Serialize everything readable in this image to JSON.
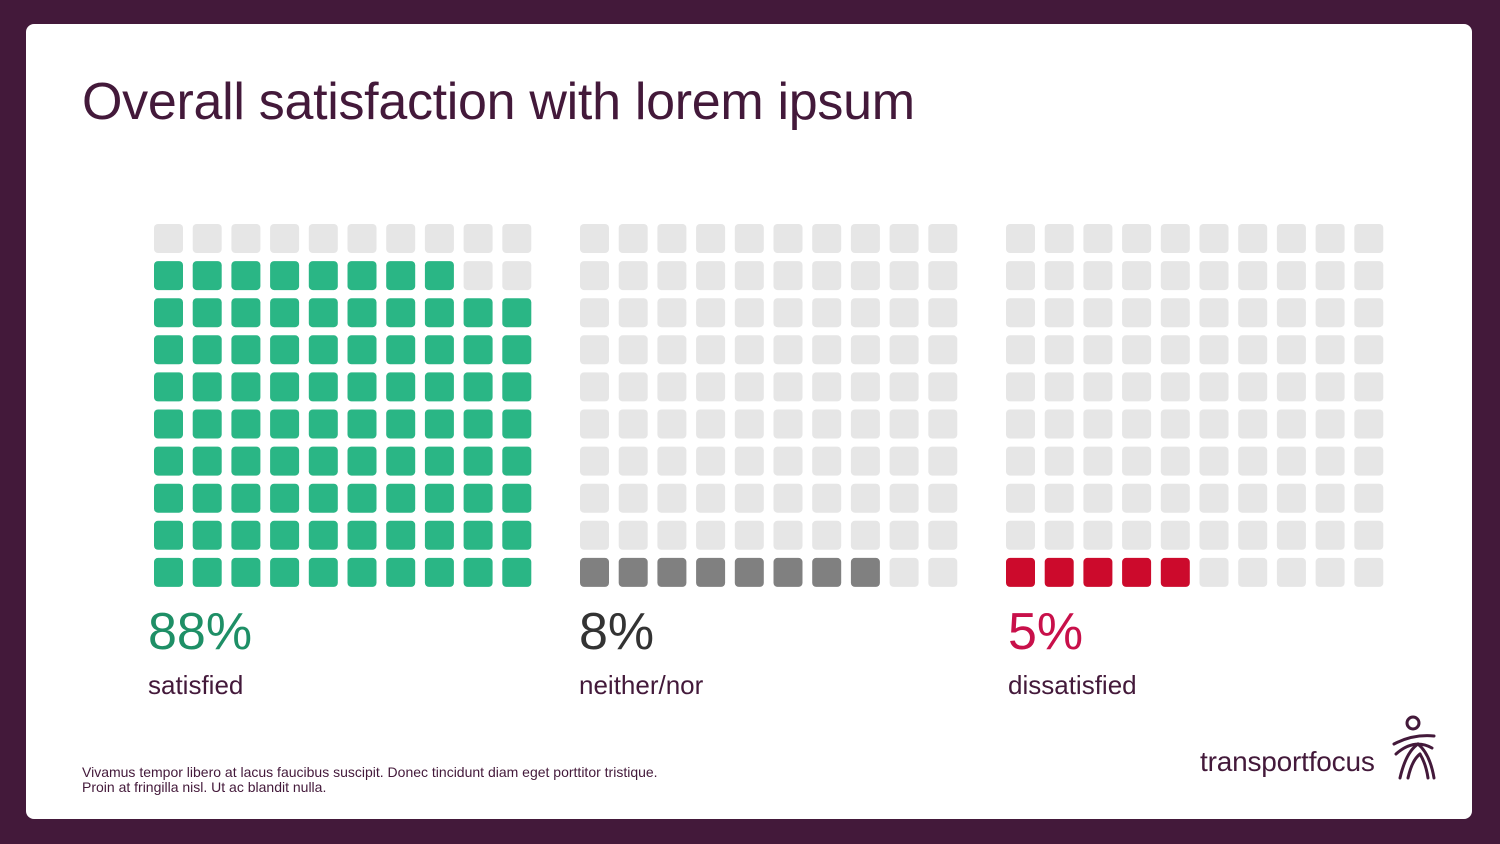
{
  "title": "Overall satisfaction with lorem ipsum",
  "chart_data": {
    "type": "waffle",
    "grid": {
      "rows": 10,
      "cols": 10
    },
    "empty_color": "#e6e6e6",
    "series": [
      {
        "name": "satisfied",
        "label": "88%",
        "value": 88,
        "color": "#2ab685",
        "text_color": "#1e8f66"
      },
      {
        "name": "neither/nor",
        "label": "8%",
        "value": 8,
        "color": "#808080",
        "text_color": "#333333"
      },
      {
        "name": "dissatisfied",
        "label": "5%",
        "value": 5,
        "color": "#cc0a2c",
        "text_color": "#c8104a"
      }
    ]
  },
  "footnote": {
    "line1": "Vivamus tempor libero at lacus faucibus suscipit. Donec tincidunt diam eget porttitor tristique.",
    "line2": "Proin at fringilla nisl. Ut ac blandit nulla."
  },
  "logo": {
    "text": "transportfocus",
    "icon": "transportfocus-figure-icon"
  },
  "colors": {
    "brand": "#43193a",
    "background": "#ffffff"
  }
}
